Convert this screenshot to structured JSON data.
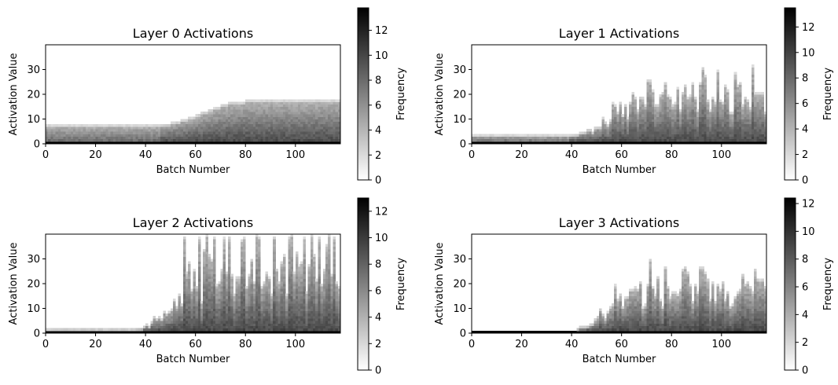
{
  "chart_data": [
    {
      "type": "heatmap",
      "title": "Layer 0 Activations",
      "xlabel": "Batch Number",
      "ylabel": "Activation Value",
      "xlim": [
        0,
        118
      ],
      "ylim": [
        0,
        40
      ],
      "xticks": [
        0,
        20,
        40,
        60,
        80,
        100
      ],
      "yticks": [
        0,
        10,
        20,
        30
      ],
      "colorbar": {
        "label": "Frequency",
        "range": [
          0,
          13.8
        ],
        "ticks": [
          0,
          2,
          4,
          6,
          8,
          10,
          12
        ]
      },
      "colormap": "gray_r",
      "profile": {
        "base_upper": 8,
        "late_upper": 17.5,
        "transition_start": 45,
        "transition_end": 80,
        "spiky": false
      },
      "grid": false
    },
    {
      "type": "heatmap",
      "title": "Layer 1 Activations",
      "xlabel": "Batch Number",
      "ylabel": "Activation Value",
      "xlim": [
        0,
        118
      ],
      "ylim": [
        0,
        40
      ],
      "xticks": [
        0,
        20,
        40,
        60,
        80,
        100
      ],
      "yticks": [
        0,
        10,
        20,
        30
      ],
      "colorbar": {
        "label": "Frequency",
        "range": [
          0,
          13.5
        ],
        "ticks": [
          0,
          2,
          4,
          6,
          8,
          10,
          12
        ]
      },
      "colormap": "gray_r",
      "profile": {
        "base_upper": 3.5,
        "late_upper": 29,
        "transition_start": 38,
        "transition_end": 75,
        "spiky": true
      },
      "grid": false
    },
    {
      "type": "heatmap",
      "title": "Layer 2 Activations",
      "xlabel": "Batch Number",
      "ylabel": "Activation Value",
      "xlim": [
        0,
        118
      ],
      "ylim": [
        0,
        40
      ],
      "xticks": [
        0,
        20,
        40,
        60,
        80,
        100
      ],
      "yticks": [
        0,
        10,
        20,
        30
      ],
      "colorbar": {
        "label": "Frequency",
        "range": [
          0,
          13
        ],
        "ticks": [
          0,
          2,
          4,
          6,
          8,
          10,
          12
        ]
      },
      "colormap": "gray_r",
      "profile": {
        "base_upper": 1.5,
        "late_upper": 38,
        "transition_start": 35,
        "transition_end": 70,
        "spiky": true
      },
      "grid": false
    },
    {
      "type": "heatmap",
      "title": "Layer 3 Activations",
      "xlabel": "Batch Number",
      "ylabel": "Activation Value",
      "xlim": [
        0,
        118
      ],
      "ylim": [
        0,
        40
      ],
      "xticks": [
        0,
        20,
        40,
        60,
        80,
        100
      ],
      "yticks": [
        0,
        10,
        20,
        30
      ],
      "colorbar": {
        "label": "Frequency",
        "range": [
          0,
          12.4
        ],
        "ticks": [
          0,
          2,
          4,
          6,
          8,
          10,
          12
        ]
      },
      "colormap": "gray_r",
      "profile": {
        "base_upper": 0.8,
        "late_upper": 27,
        "transition_start": 38,
        "transition_end": 70,
        "spiky": true
      },
      "grid": false
    }
  ]
}
